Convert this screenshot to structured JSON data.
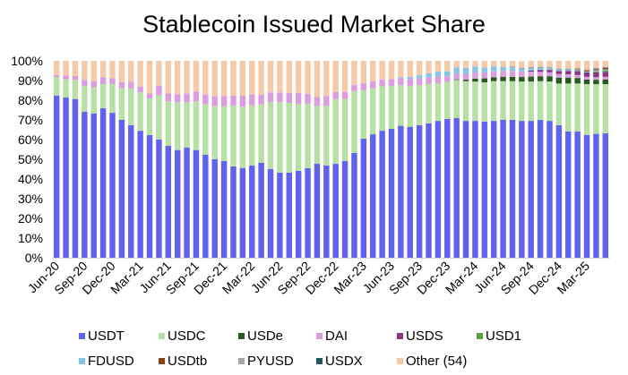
{
  "chart_data": {
    "type": "bar",
    "stacked": true,
    "title": "Stablecoin Issued Market Share",
    "xlabel": "",
    "ylabel": "",
    "ylim": [
      0,
      100
    ],
    "y_tick_labels": [
      "0%",
      "10%",
      "20%",
      "30%",
      "40%",
      "50%",
      "60%",
      "70%",
      "80%",
      "90%",
      "100%"
    ],
    "x_tick_labels": [
      "Jun-20",
      "Sep-20",
      "Dec-20",
      "Mar-21",
      "Jun-21",
      "Sep-21",
      "Dec-21",
      "Mar-22",
      "Jun-22",
      "Sep-22",
      "Dec-22",
      "Mar-23",
      "Jun-23",
      "Sep-23",
      "Dec-23",
      "Mar-24",
      "Jun-24",
      "Sep-24",
      "Dec-24",
      "Mar-25"
    ],
    "grid": false,
    "legend_position": "bottom",
    "series": [
      {
        "name": "USDT",
        "color": "#6262ee",
        "values": [
          82.4,
          81.4,
          80.6,
          74.1,
          73.3,
          75.9,
          73.6,
          70,
          67.3,
          64.5,
          62.3,
          60,
          56.8,
          54.7,
          55.9,
          54.7,
          52.3,
          50,
          49.1,
          46.4,
          45.6,
          46.8,
          48.2,
          45,
          43.2,
          43.2,
          44.1,
          45.5,
          47.7,
          46.8,
          47.7,
          49.1,
          53.2,
          60.5,
          62.7,
          64.5,
          65.5,
          67,
          66.5,
          67.3,
          68.2,
          69.5,
          70.5,
          70.9,
          69.5,
          69.5,
          69.1,
          69.5,
          70,
          70,
          69.5,
          69.5,
          70,
          69.5,
          67.3,
          64.1,
          64.1,
          62.4,
          62.9,
          63.2
        ]
      },
      {
        "name": "USDC",
        "color": "#b7e0a5",
        "values": [
          9.4,
          9.2,
          9.7,
          13.2,
          13.4,
          12.3,
          14.6,
          16.2,
          18.5,
          19.5,
          18.6,
          22.4,
          22.6,
          24.3,
          23.1,
          24.7,
          25.6,
          27.1,
          28,
          30.9,
          31.2,
          30.6,
          29.7,
          34,
          35.8,
          35.4,
          34.1,
          32.7,
          29.4,
          30.3,
          32.9,
          31.5,
          31.5,
          24.6,
          23.5,
          22.5,
          21.8,
          20.7,
          20.8,
          20.4,
          20,
          19,
          18.7,
          19.4,
          20.2,
          20,
          20,
          20.2,
          19.7,
          19.7,
          20,
          20,
          19.7,
          20,
          21.2,
          24.4,
          24.4,
          25.8,
          25.3,
          25
        ]
      },
      {
        "name": "USDe",
        "color": "#275b20",
        "values": [
          0,
          0,
          0,
          0,
          0,
          0,
          0,
          0,
          0,
          0,
          0,
          0,
          0,
          0,
          0,
          0,
          0,
          0,
          0,
          0,
          0,
          0,
          0,
          0,
          0,
          0,
          0,
          0,
          0,
          0,
          0,
          0,
          0,
          0,
          0,
          0,
          0,
          0,
          0,
          0,
          0,
          0,
          0,
          0.3,
          0.8,
          1.5,
          2,
          2,
          2.2,
          2.2,
          2.3,
          2.5,
          2.5,
          2.7,
          3,
          3,
          2.8,
          2.3,
          2.2,
          2.4
        ]
      },
      {
        "name": "DAI",
        "color": "#dc9de0",
        "values": [
          1,
          2,
          2,
          3,
          3,
          3.5,
          3,
          3,
          3.5,
          3,
          2.5,
          5,
          4,
          4,
          4.5,
          5,
          5,
          5,
          5,
          5,
          5.5,
          5.5,
          5,
          5,
          5,
          5,
          5.5,
          5,
          4.5,
          5,
          3.5,
          3.5,
          3,
          3.5,
          3.5,
          3.5,
          3.5,
          3.5,
          3.5,
          3.5,
          3.5,
          3.5,
          3,
          3,
          3,
          3,
          3,
          3,
          3,
          3,
          2.8,
          2.5,
          2.2,
          2,
          1.8,
          1.7,
          1.5,
          1.4,
          1.3,
          1.3
        ]
      },
      {
        "name": "USDS",
        "color": "#8a3581",
        "values": [
          0,
          0,
          0,
          0,
          0,
          0,
          0,
          0,
          0,
          0,
          0,
          0,
          0,
          0,
          0,
          0,
          0,
          0,
          0,
          0,
          0,
          0,
          0,
          0,
          0,
          0,
          0,
          0,
          0,
          0,
          0,
          0,
          0,
          0,
          0,
          0,
          0,
          0,
          0,
          0,
          0,
          0,
          0,
          0,
          0,
          0,
          0,
          0,
          0,
          0,
          0,
          0.5,
          1,
          1.2,
          1.5,
          1.7,
          2,
          2.2,
          2.5,
          2.5
        ]
      },
      {
        "name": "USD1",
        "color": "#5ba33d",
        "values": [
          0,
          0,
          0,
          0,
          0,
          0,
          0,
          0,
          0,
          0,
          0,
          0,
          0,
          0,
          0,
          0,
          0,
          0,
          0,
          0,
          0,
          0,
          0,
          0,
          0,
          0,
          0,
          0,
          0,
          0,
          0,
          0,
          0,
          0,
          0,
          0,
          0,
          0,
          0,
          0,
          0,
          0,
          0,
          0,
          0,
          0,
          0,
          0,
          0,
          0,
          0,
          0,
          0,
          0,
          0,
          0,
          0,
          0,
          0.5,
          0.8
        ]
      },
      {
        "name": "FDUSD",
        "color": "#87c5e6",
        "values": [
          0,
          0,
          0,
          0,
          0,
          0,
          0,
          0,
          0,
          0,
          0,
          0,
          0,
          0,
          0,
          0,
          0,
          0,
          0,
          0,
          0,
          0,
          0,
          0,
          0,
          0,
          0,
          0,
          0,
          0,
          0,
          0,
          0,
          0,
          0,
          0,
          0,
          0.5,
          1,
          1.5,
          2,
          2.5,
          2.5,
          3,
          3,
          3,
          2.5,
          2.5,
          2,
          2,
          1.5,
          1.2,
          1,
          0.8,
          0.7,
          0.6,
          0.5,
          0.5,
          0.5,
          0.5
        ]
      },
      {
        "name": "USDtb",
        "color": "#8b4513",
        "values": [
          0,
          0,
          0,
          0,
          0,
          0,
          0,
          0,
          0,
          0,
          0,
          0,
          0,
          0,
          0,
          0,
          0,
          0,
          0,
          0,
          0,
          0,
          0,
          0,
          0,
          0,
          0,
          0,
          0,
          0,
          0,
          0,
          0,
          0,
          0,
          0,
          0,
          0,
          0,
          0,
          0,
          0,
          0,
          0,
          0,
          0,
          0,
          0,
          0,
          0,
          0,
          0,
          0,
          0,
          0,
          0,
          0.3,
          0.5,
          0.6,
          0.7
        ]
      },
      {
        "name": "PYUSD",
        "color": "#a6a6a6",
        "values": [
          0,
          0,
          0,
          0,
          0,
          0,
          0,
          0,
          0,
          0,
          0,
          0,
          0,
          0,
          0,
          0,
          0,
          0,
          0,
          0,
          0,
          0,
          0,
          0,
          0,
          0,
          0,
          0,
          0,
          0,
          0,
          0,
          0,
          0,
          0,
          0,
          0,
          0,
          0,
          0,
          0,
          0,
          0,
          0,
          0,
          0,
          0,
          0,
          0,
          0,
          0,
          0.2,
          0.3,
          0.3,
          0.3,
          0.3,
          0.3,
          0.3,
          0.3,
          0.3
        ]
      },
      {
        "name": "USDX",
        "color": "#245667",
        "values": [
          0,
          0,
          0,
          0,
          0,
          0,
          0,
          0,
          0,
          0,
          0,
          0,
          0,
          0,
          0,
          0,
          0,
          0,
          0,
          0,
          0,
          0,
          0,
          0,
          0,
          0,
          0,
          0,
          0,
          0,
          0,
          0,
          0,
          0,
          0,
          0,
          0,
          0,
          0,
          0,
          0,
          0,
          0,
          0,
          0,
          0,
          0,
          0,
          0,
          0.2,
          0.2,
          0.2,
          0.2,
          0.2,
          0.2,
          0.2,
          0.2,
          0.2,
          0.2,
          0.2
        ]
      },
      {
        "name": "Other (54)",
        "color": "#f5caa9",
        "values": [
          7.2,
          7.4,
          7.7,
          9.7,
          10.3,
          8.3,
          8.8,
          10.8,
          10.7,
          13,
          16.6,
          12.6,
          16.6,
          17,
          16.5,
          15.6,
          17.1,
          17.9,
          17.9,
          17.7,
          17.7,
          17.1,
          17.1,
          16,
          16,
          16.4,
          16.3,
          16.8,
          18.4,
          17.9,
          15.9,
          15.9,
          12.3,
          11.4,
          10.3,
          9.5,
          9.2,
          8.3,
          8.2,
          7.3,
          6.3,
          5.5,
          5.3,
          3.4,
          3.5,
          3,
          3.4,
          2.8,
          3.1,
          2.9,
          3.5,
          3.4,
          3.1,
          3.3,
          4,
          4,
          3.9,
          4.4,
          3.7,
          3.1
        ]
      }
    ]
  }
}
